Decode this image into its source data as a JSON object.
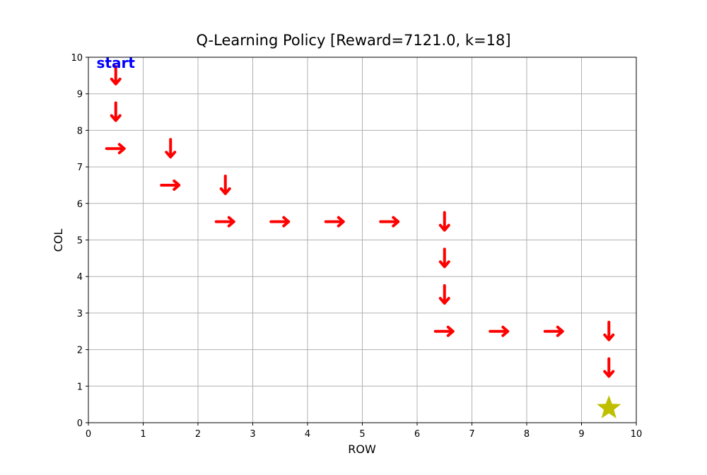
{
  "chart_data": {
    "type": "scatter",
    "title": "Q-Learning Policy [Reward=7121.0, k=18]",
    "xlabel": "ROW",
    "ylabel": "COL",
    "xlim": [
      0,
      10
    ],
    "ylim": [
      0,
      10
    ],
    "xticks": [
      "0",
      "1",
      "2",
      "3",
      "4",
      "5",
      "6",
      "7",
      "8",
      "9",
      "10"
    ],
    "yticks": [
      "0",
      "1",
      "2",
      "3",
      "4",
      "5",
      "6",
      "7",
      "8",
      "9",
      "10"
    ],
    "grid": true,
    "start_label": "start",
    "start_position": [
      0.5,
      9.85
    ],
    "goal": {
      "x": 9.5,
      "y": 0.4,
      "marker": "star",
      "color": "#bfbf00"
    },
    "arrow_color": "#ff0000",
    "start_color": "#0000ff",
    "arrows": [
      {
        "x": 0.5,
        "y": 9.5,
        "dir": "down"
      },
      {
        "x": 0.5,
        "y": 8.5,
        "dir": "down"
      },
      {
        "x": 0.5,
        "y": 7.5,
        "dir": "right"
      },
      {
        "x": 1.5,
        "y": 7.5,
        "dir": "down"
      },
      {
        "x": 1.5,
        "y": 6.5,
        "dir": "right"
      },
      {
        "x": 2.5,
        "y": 6.5,
        "dir": "down"
      },
      {
        "x": 2.5,
        "y": 5.5,
        "dir": "right"
      },
      {
        "x": 3.5,
        "y": 5.5,
        "dir": "right"
      },
      {
        "x": 4.5,
        "y": 5.5,
        "dir": "right"
      },
      {
        "x": 5.5,
        "y": 5.5,
        "dir": "right"
      },
      {
        "x": 6.5,
        "y": 5.5,
        "dir": "down"
      },
      {
        "x": 6.5,
        "y": 4.5,
        "dir": "down"
      },
      {
        "x": 6.5,
        "y": 3.5,
        "dir": "down"
      },
      {
        "x": 6.5,
        "y": 2.5,
        "dir": "right"
      },
      {
        "x": 7.5,
        "y": 2.5,
        "dir": "right"
      },
      {
        "x": 8.5,
        "y": 2.5,
        "dir": "right"
      },
      {
        "x": 9.5,
        "y": 2.5,
        "dir": "down"
      },
      {
        "x": 9.5,
        "y": 1.5,
        "dir": "down"
      }
    ]
  }
}
